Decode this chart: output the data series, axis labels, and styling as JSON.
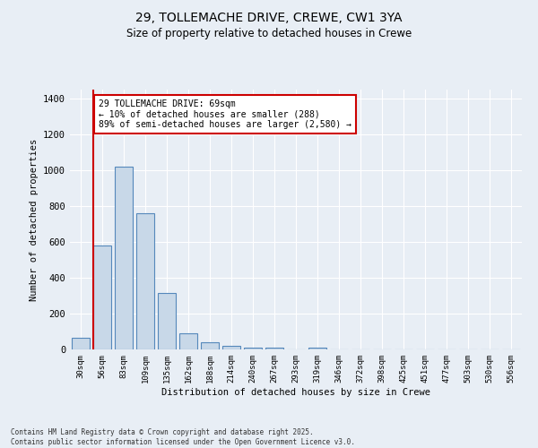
{
  "title_line1": "29, TOLLEMACHE DRIVE, CREWE, CW1 3YA",
  "title_line2": "Size of property relative to detached houses in Crewe",
  "xlabel": "Distribution of detached houses by size in Crewe",
  "ylabel": "Number of detached properties",
  "bar_color": "#c8d8e8",
  "bar_edge_color": "#5588bb",
  "bins": [
    "30sqm",
    "56sqm",
    "83sqm",
    "109sqm",
    "135sqm",
    "162sqm",
    "188sqm",
    "214sqm",
    "240sqm",
    "267sqm",
    "293sqm",
    "319sqm",
    "346sqm",
    "372sqm",
    "398sqm",
    "425sqm",
    "451sqm",
    "477sqm",
    "503sqm",
    "530sqm",
    "556sqm"
  ],
  "values": [
    65,
    580,
    1020,
    760,
    315,
    90,
    38,
    22,
    12,
    10,
    0,
    12,
    0,
    0,
    0,
    0,
    0,
    0,
    0,
    0,
    0
  ],
  "annotation_text": "29 TOLLEMACHE DRIVE: 69sqm\n← 10% of detached houses are smaller (288)\n89% of semi-detached houses are larger (2,580) →",
  "annotation_box_color": "#ffffff",
  "annotation_box_edge": "#cc0000",
  "red_line_x": 0.57,
  "ylim": [
    0,
    1450
  ],
  "yticks": [
    0,
    200,
    400,
    600,
    800,
    1000,
    1200,
    1400
  ],
  "background_color": "#e8eef5",
  "grid_color": "#ffffff",
  "footer": "Contains HM Land Registry data © Crown copyright and database right 2025.\nContains public sector information licensed under the Open Government Licence v3.0."
}
